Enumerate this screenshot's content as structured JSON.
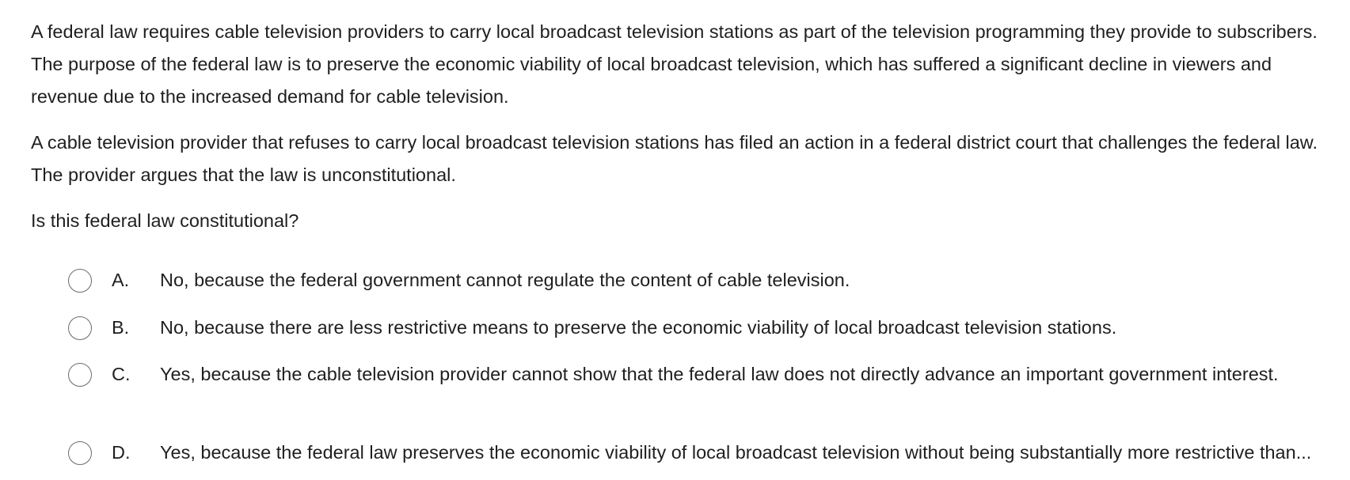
{
  "question": {
    "paragraph_1": "A federal law requires cable television providers to carry local broadcast television stations as part of the television programming they provide to subscribers.  The purpose of the federal law is to preserve the economic viability of local broadcast television, which has suffered a significant decline in viewers and revenue due to the increased demand for cable television.",
    "paragraph_2": "A cable television provider that refuses to carry local broadcast television stations has filed an action in a federal district court that challenges the federal law.  The provider argues that the law is unconstitutional.",
    "prompt": "Is this federal law constitutional?"
  },
  "choices": [
    {
      "letter": "A.",
      "text": "No, because the federal government cannot regulate the content of cable television."
    },
    {
      "letter": "B.",
      "text": "No, because there are less restrictive means to preserve the economic viability of local broadcast television stations."
    },
    {
      "letter": "C.",
      "text": "Yes, because the cable television provider cannot show that the federal law does not directly advance an important government interest."
    },
    {
      "letter": "D.",
      "text": "Yes, because the federal law preserves the economic viability of local broadcast television without being substantially more restrictive than..."
    }
  ]
}
